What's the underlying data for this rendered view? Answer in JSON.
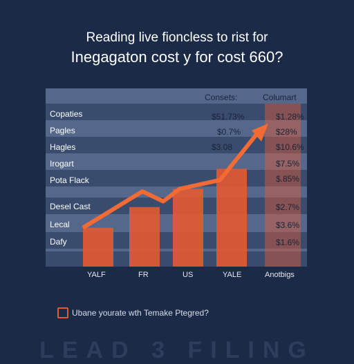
{
  "title": "Reading live fioncless to rist for",
  "subtitle": "Inegagaton cost y for cost 660?",
  "columns": {
    "col1": "Consets:",
    "col2": "Columart"
  },
  "rows": [
    {
      "label": "Copaties",
      "val1": "$51.73%",
      "val2": "$1.28%"
    },
    {
      "label": "Pagles",
      "val1": "$0.7%",
      "val2": "$28%"
    },
    {
      "label": "Hagles",
      "val1": "$3.08",
      "val2": "$10.6%"
    },
    {
      "label": "Irogart",
      "val1": "",
      "val2": "$7.5%"
    },
    {
      "label": "Pota Flack",
      "val1": "",
      "val2": "$.85%"
    },
    {
      "label": "Desel Cast",
      "val1": "",
      "val2": "$2.7%"
    },
    {
      "label": "Lecal",
      "val1": "",
      "val2": "$3.6%"
    },
    {
      "label": "Dafy",
      "val1": "",
      "val2": "$1.6%"
    }
  ],
  "chart_data": {
    "type": "bar",
    "categories": [
      "YALF",
      "FR",
      "US",
      "YALE"
    ],
    "values": [
      62,
      95,
      124,
      156
    ],
    "trend": [
      62,
      120,
      104,
      124,
      138,
      215
    ],
    "ylim": [
      0,
      260
    ],
    "colors": {
      "bar": "#e35a32",
      "line": "#f26a34"
    }
  },
  "highlight_label": "Anotbigs",
  "checkbox_label": "Ubane yourate wth Temake Ptegred?",
  "footer": "LEAD 3 FILING"
}
